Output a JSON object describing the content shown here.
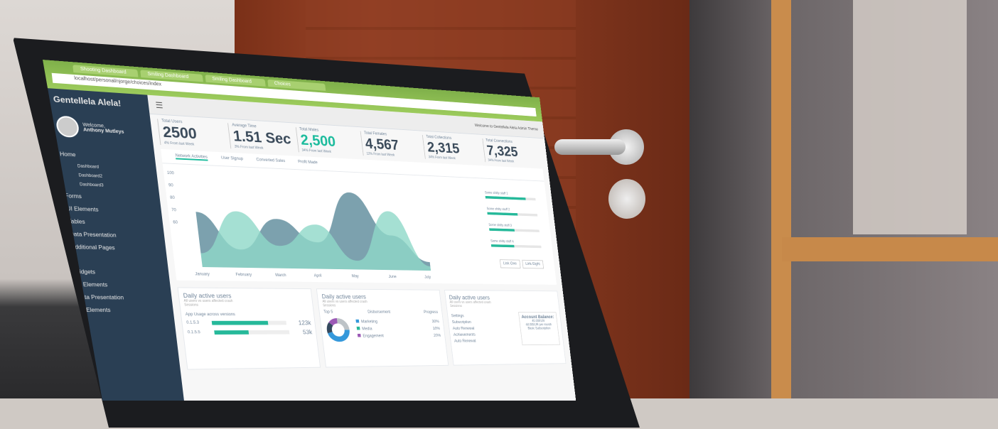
{
  "browser": {
    "tabs": [
      "Shooting Dashboard",
      "Smiling Dashboard",
      "Smiling Dashboard",
      "Choices"
    ],
    "url": "localhost/personal/njorge/choices/index"
  },
  "sidebar": {
    "brand": "Gentellela Alela!",
    "welcome": "Welcome,",
    "user": "Anthony Mutleys",
    "items": [
      {
        "label": "Home"
      },
      {
        "label": "Dashboard",
        "sub": true
      },
      {
        "label": "Dashboard2",
        "sub": true
      },
      {
        "label": "Dashboard3",
        "sub": true
      },
      {
        "label": "Forms"
      },
      {
        "label": "UI Elements"
      },
      {
        "label": "Tables"
      },
      {
        "label": "Data Presentation"
      },
      {
        "label": "Additional Pages"
      },
      {
        "label": "Widgets"
      },
      {
        "label": "UI Elements"
      },
      {
        "label": "Data Presentation"
      },
      {
        "label": "UI Elements"
      }
    ]
  },
  "topbar": {
    "welcome": "Welcome to Gentellela Alela Admin Theme"
  },
  "stats": [
    {
      "label": "Total Users",
      "value": "2500",
      "foot": "4% From last Week",
      "green": false
    },
    {
      "label": "Average Time",
      "value": "1.51 Sec",
      "foot": "3% From last Week",
      "green": false
    },
    {
      "label": "Total Males",
      "value": "2,500",
      "foot": "34% From last Week",
      "green": true
    },
    {
      "label": "Total Females",
      "value": "4,567",
      "foot": "12% From last Week",
      "green": false
    },
    {
      "label": "Total Collections",
      "value": "2,315",
      "foot": "34% From last Week",
      "green": false
    },
    {
      "label": "Total Connections",
      "value": "7,325",
      "foot": "34% From last Week",
      "green": false
    }
  ],
  "chart_tabs": [
    "Network Activities",
    "User Signup",
    "Converted Sales",
    "Profit Made"
  ],
  "chart_data": {
    "type": "area",
    "x": [
      "January",
      "February",
      "March",
      "April",
      "May",
      "June",
      "July"
    ],
    "yticks": [
      "100",
      "90",
      "80",
      "70",
      "60"
    ],
    "series": [
      {
        "color": "#5b8a9a",
        "values": [
          60,
          20,
          55,
          30,
          88,
          40,
          10
        ]
      },
      {
        "color": "#8fd8c8",
        "values": [
          15,
          62,
          25,
          50,
          10,
          68,
          5
        ]
      }
    ]
  },
  "progress": [
    {
      "label": "Some shitty stuff 1",
      "value": 0.8
    },
    {
      "label": "Some shitty stuff 2",
      "value": 0.6
    },
    {
      "label": "Some shitty stuff 3",
      "value": 0.5
    },
    {
      "label": "Some shitty stuff 4",
      "value": 0.45
    }
  ],
  "buttons": [
    "Link One",
    "Link Eight"
  ],
  "panel_title": "Daily active users",
  "panel_sub": "All users vs users affected crash",
  "sessions": "Sessions",
  "app_usage": {
    "title": "App Usage across versions",
    "rows": [
      {
        "v": "0.1.5.3",
        "pct": 0.75,
        "val": "123k"
      },
      {
        "v": "0.1.5.5",
        "pct": 0.45,
        "val": "53k"
      }
    ]
  },
  "top5": {
    "headers": [
      "Top 5",
      "Disbursement",
      "Progress"
    ],
    "rows": [
      {
        "label": "Marketing",
        "pct": "30%",
        "color": "#3498db"
      },
      {
        "label": "Media",
        "pct": "10%",
        "color": "#26b99a"
      },
      {
        "label": "Engagement",
        "pct": "20%",
        "color": "#9b59b6"
      }
    ]
  },
  "settings": {
    "items": [
      "Settings",
      "Subscription",
      "Auto Renewal",
      "Achievements",
      "Auto Renewal"
    ],
    "balance_title": "Account Balance:",
    "balance": "40.00EUR",
    "per_month": "40.00EUR per month",
    "basic": "Basic Subscription"
  }
}
